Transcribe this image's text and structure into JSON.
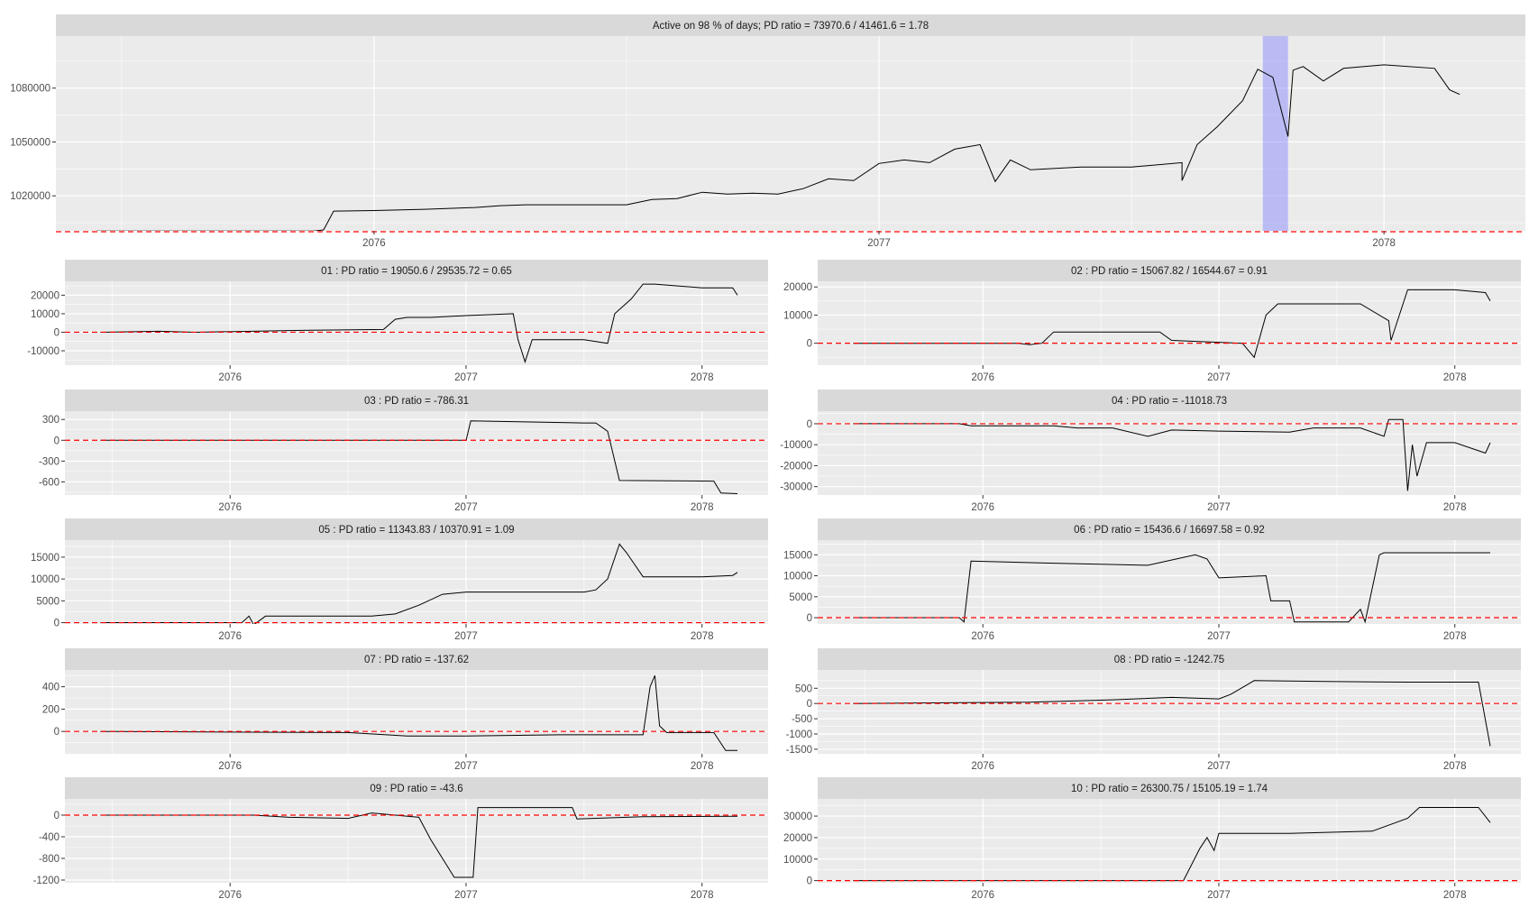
{
  "chart_data": [
    {
      "type": "line",
      "title": "Active on 98 % of days; PD ratio =  73970.6 / 41461.6 = 1.78",
      "xlim": [
        2075.37,
        2078.28
      ],
      "ylim": [
        1000500,
        1109000
      ],
      "xticks": [
        2076,
        2077,
        2078
      ],
      "xtick_labels": [
        "2076",
        "2077",
        "2078"
      ],
      "yticks": [
        1020000,
        1050000,
        1080000
      ],
      "ytick_labels": [
        "1020000",
        "1050000",
        "1080000"
      ],
      "reference_line": {
        "y": 1000000,
        "style": "dashed",
        "color": "#ff0000"
      },
      "highlight_band": {
        "x": [
          2077.76,
          2077.81
        ],
        "color": "#8080ff"
      },
      "x": [
        2075.45,
        2075.88,
        2075.9,
        2075.92,
        2076.0,
        2076.1,
        2076.2,
        2076.25,
        2076.3,
        2076.4,
        2076.5,
        2076.55,
        2076.6,
        2076.65,
        2076.7,
        2076.75,
        2076.8,
        2076.85,
        2076.9,
        2076.95,
        2077.0,
        2077.05,
        2077.1,
        2077.15,
        2077.2,
        2077.23,
        2077.26,
        2077.3,
        2077.4,
        2077.5,
        2077.6,
        2077.6,
        2077.63,
        2077.67,
        2077.72,
        2077.75,
        2077.78,
        2077.81,
        2077.82,
        2077.84,
        2077.88,
        2077.92,
        2078.0,
        2078.1,
        2078.13,
        2078.15
      ],
      "y": [
        1000400,
        1000400,
        1001000,
        1011500,
        1011800,
        1012500,
        1013500,
        1014500,
        1015000,
        1015000,
        1015000,
        1018000,
        1018500,
        1022000,
        1021000,
        1021500,
        1021000,
        1024000,
        1029500,
        1028500,
        1038000,
        1040000,
        1038500,
        1046000,
        1048500,
        1028000,
        1040000,
        1034500,
        1036000,
        1036000,
        1038500,
        1028500,
        1048500,
        1058500,
        1073000,
        1090500,
        1086000,
        1053000,
        1090000,
        1092000,
        1084000,
        1091000,
        1093000,
        1091000,
        1079000,
        1076500
      ]
    },
    {
      "type": "line",
      "title": "01 : PD ratio =  19050.6 / 29535.72 = 0.65",
      "xlim": [
        2075.3,
        2078.28
      ],
      "ylim": [
        -17800,
        27500
      ],
      "xticks": [
        2076,
        2077,
        2078
      ],
      "xtick_labels": [
        "2076",
        "2077",
        "2078"
      ],
      "yticks": [
        -10000,
        0,
        10000,
        20000
      ],
      "ytick_labels": [
        "-10000",
        "0",
        "10000",
        "20000"
      ],
      "reference_line": {
        "y": 0,
        "style": "dashed",
        "color": "#ff0000"
      },
      "x": [
        2075.45,
        2075.7,
        2075.85,
        2076.3,
        2076.65,
        2076.7,
        2076.75,
        2076.85,
        2077.0,
        2077.2,
        2077.22,
        2077.25,
        2077.28,
        2077.3,
        2077.5,
        2077.6,
        2077.63,
        2077.7,
        2077.75,
        2077.8,
        2078.0,
        2078.13,
        2078.15
      ],
      "y": [
        0,
        500,
        0,
        1000,
        1500,
        7000,
        8000,
        8000,
        9000,
        10000,
        -4000,
        -16000,
        -4000,
        -4000,
        -4000,
        -6000,
        10000,
        18000,
        26000,
        26000,
        24000,
        24000,
        20000
      ]
    },
    {
      "type": "line",
      "title": "02 : PD ratio =  15067.82 / 16544.67 = 0.91",
      "xlim": [
        2075.3,
        2078.28
      ],
      "ylim": [
        -7800,
        22000
      ],
      "xticks": [
        2076,
        2077,
        2078
      ],
      "xtick_labels": [
        "2076",
        "2077",
        "2078"
      ],
      "yticks": [
        0,
        10000,
        20000
      ],
      "ytick_labels": [
        "0",
        "10000",
        "20000"
      ],
      "reference_line": {
        "y": 0,
        "style": "dashed",
        "color": "#ff0000"
      },
      "x": [
        2075.45,
        2076.15,
        2076.2,
        2076.25,
        2076.3,
        2076.75,
        2076.8,
        2077.1,
        2077.15,
        2077.2,
        2077.25,
        2077.3,
        2077.6,
        2077.72,
        2077.73,
        2077.8,
        2078.0,
        2078.13,
        2078.15
      ],
      "y": [
        0,
        0,
        -500,
        0,
        4000,
        4000,
        1000,
        0,
        -5000,
        10000,
        14000,
        14000,
        14000,
        8000,
        1000,
        19000,
        19000,
        18000,
        15000
      ]
    },
    {
      "type": "line",
      "title": "03 : PD ratio =  -786.31",
      "xlim": [
        2075.3,
        2078.28
      ],
      "ylim": [
        -790,
        420
      ],
      "xticks": [
        2076,
        2077,
        2078
      ],
      "xtick_labels": [
        "2076",
        "2077",
        "2078"
      ],
      "yticks": [
        -600,
        -300,
        0,
        300
      ],
      "ytick_labels": [
        "-600",
        "-300",
        "0",
        "300"
      ],
      "reference_line": {
        "y": 0,
        "style": "dashed",
        "color": "#ff0000"
      },
      "x": [
        2075.45,
        2076.95,
        2077.0,
        2077.02,
        2077.5,
        2077.55,
        2077.6,
        2077.65,
        2078.05,
        2078.08,
        2078.15
      ],
      "y": [
        0,
        0,
        0,
        280,
        250,
        250,
        130,
        -580,
        -590,
        -760,
        -770
      ]
    },
    {
      "type": "line",
      "title": "04 : PD ratio =  -11018.73",
      "xlim": [
        2075.3,
        2078.28
      ],
      "ylim": [
        -34000,
        6000
      ],
      "xticks": [
        2076,
        2077,
        2078
      ],
      "xtick_labels": [
        "2076",
        "2077",
        "2078"
      ],
      "yticks": [
        -30000,
        -20000,
        -10000,
        0
      ],
      "ytick_labels": [
        "-30000",
        "-20000",
        "-10000",
        "0"
      ],
      "reference_line": {
        "y": 0,
        "style": "dashed",
        "color": "#ff0000"
      },
      "x": [
        2075.45,
        2075.9,
        2075.95,
        2076.3,
        2076.4,
        2076.55,
        2076.7,
        2076.8,
        2077.0,
        2077.3,
        2077.4,
        2077.6,
        2077.7,
        2077.72,
        2077.78,
        2077.8,
        2077.82,
        2077.84,
        2077.88,
        2078.0,
        2078.13,
        2078.15
      ],
      "y": [
        0,
        0,
        -1000,
        -1000,
        -2000,
        -2000,
        -6000,
        -3000,
        -3500,
        -4000,
        -2000,
        -2000,
        -6000,
        2000,
        2000,
        -32000,
        -10000,
        -25000,
        -9000,
        -9000,
        -14000,
        -9000
      ]
    },
    {
      "type": "line",
      "title": "05 : PD ratio =  11343.83 / 10370.91 = 1.09",
      "xlim": [
        2075.3,
        2078.28
      ],
      "ylim": [
        -300,
        18900
      ],
      "xticks": [
        2076,
        2077,
        2078
      ],
      "xtick_labels": [
        "2076",
        "2077",
        "2078"
      ],
      "yticks": [
        0,
        5000,
        10000,
        15000
      ],
      "ytick_labels": [
        "0",
        "5000",
        "10000",
        "15000"
      ],
      "reference_line": {
        "y": 0,
        "style": "dashed",
        "color": "#ff0000"
      },
      "x": [
        2075.45,
        2076.05,
        2076.08,
        2076.1,
        2076.15,
        2076.6,
        2076.7,
        2076.8,
        2076.9,
        2077.0,
        2077.3,
        2077.5,
        2077.55,
        2077.6,
        2077.65,
        2077.68,
        2077.75,
        2078.0,
        2078.13,
        2078.15
      ],
      "y": [
        0,
        0,
        1500,
        -500,
        1500,
        1500,
        2000,
        4000,
        6500,
        7000,
        7000,
        7000,
        7500,
        10000,
        18000,
        16000,
        10500,
        10500,
        10800,
        11500
      ]
    },
    {
      "type": "line",
      "title": "06 : PD ratio =  15436.6 / 16697.58 = 0.92",
      "xlim": [
        2075.3,
        2078.28
      ],
      "ylim": [
        -1500,
        18500
      ],
      "xticks": [
        2076,
        2077,
        2078
      ],
      "xtick_labels": [
        "2076",
        "2077",
        "2078"
      ],
      "yticks": [
        0,
        5000,
        10000,
        15000
      ],
      "ytick_labels": [
        "0",
        "5000",
        "10000",
        "15000"
      ],
      "reference_line": {
        "y": 0,
        "style": "dashed",
        "color": "#ff0000"
      },
      "x": [
        2075.45,
        2075.9,
        2075.92,
        2075.95,
        2076.3,
        2076.7,
        2076.9,
        2076.95,
        2077.0,
        2077.2,
        2077.22,
        2077.3,
        2077.32,
        2077.55,
        2077.6,
        2077.62,
        2077.68,
        2077.7,
        2078.0,
        2078.15
      ],
      "y": [
        0,
        0,
        -1000,
        13500,
        13000,
        12500,
        15000,
        14000,
        9500,
        10000,
        4000,
        4000,
        -1000,
        -1000,
        2000,
        -1000,
        15000,
        15500,
        15500,
        15500
      ]
    },
    {
      "type": "line",
      "title": "07 : PD ratio =  -137.62",
      "xlim": [
        2075.3,
        2078.28
      ],
      "ylim": [
        -200,
        550
      ],
      "xticks": [
        2076,
        2077,
        2078
      ],
      "xtick_labels": [
        "2076",
        "2077",
        "2078"
      ],
      "yticks": [
        0,
        200,
        400
      ],
      "ytick_labels": [
        "0",
        "200",
        "400"
      ],
      "reference_line": {
        "y": 0,
        "style": "dashed",
        "color": "#ff0000"
      },
      "x": [
        2075.45,
        2076.5,
        2076.75,
        2077.0,
        2077.4,
        2077.75,
        2077.78,
        2077.8,
        2077.82,
        2077.85,
        2078.05,
        2078.1,
        2078.15
      ],
      "y": [
        0,
        -10,
        -40,
        -40,
        -30,
        -30,
        400,
        500,
        50,
        -10,
        -10,
        -170,
        -170
      ]
    },
    {
      "type": "line",
      "title": "08 : PD ratio =  -1242.75",
      "xlim": [
        2075.3,
        2078.28
      ],
      "ylim": [
        -1650,
        1100
      ],
      "xticks": [
        2076,
        2077,
        2078
      ],
      "xtick_labels": [
        "2076",
        "2077",
        "2078"
      ],
      "yticks": [
        -1500,
        -1000,
        -500,
        0,
        500
      ],
      "ytick_labels": [
        "-1500",
        "-1000",
        "-500",
        "0",
        "500"
      ],
      "reference_line": {
        "y": 0,
        "style": "dashed",
        "color": "#ff0000"
      },
      "x": [
        2075.45,
        2075.8,
        2076.2,
        2076.55,
        2076.8,
        2077.0,
        2077.05,
        2077.15,
        2077.5,
        2077.8,
        2078.1,
        2078.15
      ],
      "y": [
        0,
        20,
        40,
        120,
        200,
        150,
        300,
        750,
        720,
        700,
        700,
        -1400
      ]
    },
    {
      "type": "line",
      "title": "09 : PD ratio =  -43.6",
      "xlim": [
        2075.3,
        2078.28
      ],
      "ylim": [
        -1250,
        300
      ],
      "xticks": [
        2076,
        2077,
        2078
      ],
      "xtick_labels": [
        "2076",
        "2077",
        "2078"
      ],
      "yticks": [
        -1200,
        -800,
        -400,
        0
      ],
      "ytick_labels": [
        "-1200",
        "-800",
        "-400",
        "0"
      ],
      "reference_line": {
        "y": 0,
        "style": "dashed",
        "color": "#ff0000"
      },
      "x": [
        2075.45,
        2076.1,
        2076.25,
        2076.5,
        2076.6,
        2076.8,
        2076.85,
        2076.95,
        2077.03,
        2077.05,
        2077.45,
        2077.47,
        2077.75,
        2078.15
      ],
      "y": [
        0,
        0,
        -40,
        -60,
        40,
        -40,
        -450,
        -1150,
        -1150,
        140,
        140,
        -70,
        -30,
        -20
      ]
    },
    {
      "type": "line",
      "title": "10 : PD ratio =  26300.75 / 15105.19 = 1.74",
      "xlim": [
        2075.3,
        2078.28
      ],
      "ylim": [
        -1000,
        38000
      ],
      "xticks": [
        2076,
        2077,
        2078
      ],
      "xtick_labels": [
        "2076",
        "2077",
        "2078"
      ],
      "yticks": [
        0,
        10000,
        20000,
        30000
      ],
      "ytick_labels": [
        "0",
        "10000",
        "20000",
        "30000"
      ],
      "reference_line": {
        "y": 0,
        "style": "dashed",
        "color": "#ff0000"
      },
      "x": [
        2075.45,
        2076.85,
        2076.92,
        2076.95,
        2076.98,
        2077.0,
        2077.3,
        2077.65,
        2077.8,
        2077.85,
        2078.0,
        2078.1,
        2078.15
      ],
      "y": [
        0,
        0,
        15000,
        20000,
        14000,
        22000,
        22000,
        23000,
        29000,
        34000,
        34000,
        34000,
        27000
      ]
    }
  ],
  "colors": {
    "panel_background": "#ebebeb",
    "strip_background": "#d9d9d9",
    "grid": "#ffffff",
    "series_line": "#000000",
    "reference_line": "#ff0000",
    "highlight": "#8080ff"
  }
}
